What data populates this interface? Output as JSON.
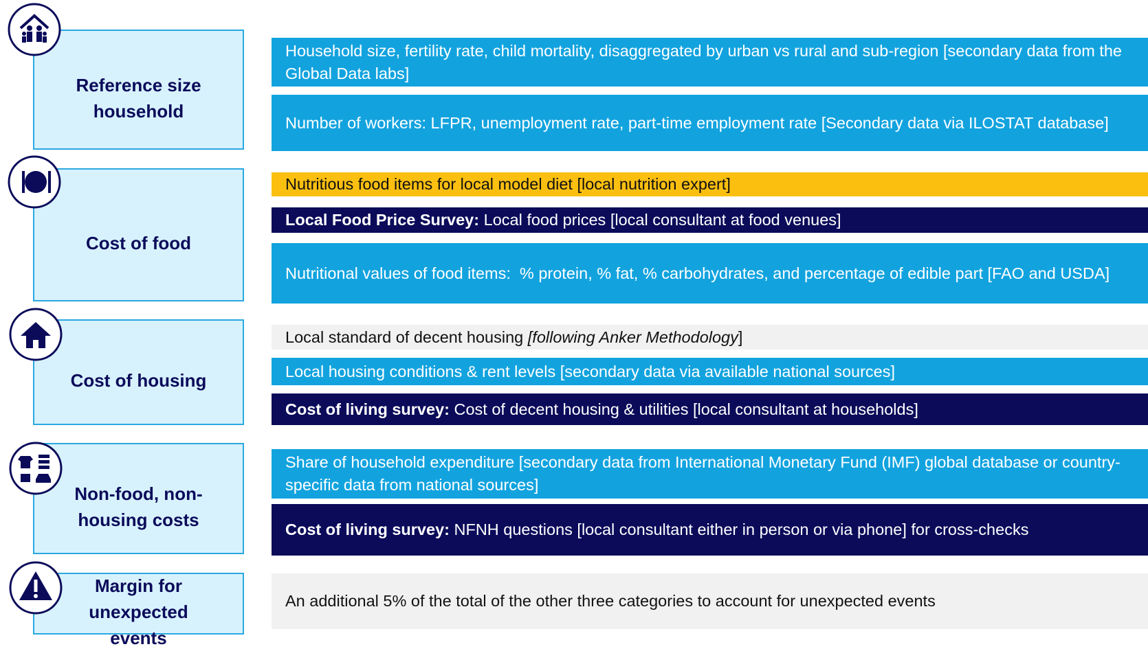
{
  "blocks": [
    {
      "label": "Reference size household",
      "items": [
        {
          "fill": "#12a3df",
          "parts": [
            {
              "text": "Household size, fertility rate, child mortality, disaggregated by urban vs rural and sub-region [secondary data from the Global Data labs]"
            }
          ]
        },
        {
          "fill": "#12a3df",
          "parts": [
            {
              "text": "Number of workers: LFPR, unemployment rate, part-time employment rate [Secondary data via ILOSTAT database]"
            }
          ]
        }
      ]
    },
    {
      "label": "Cost of food",
      "items": [
        {
          "fill": "#fbbf10",
          "parts": [
            {
              "text": "Nutritious food items for local model diet [local nutrition expert]"
            }
          ]
        },
        {
          "fill": "#0b0b5a",
          "parts": [
            {
              "text": "Local Food Price Survey:",
              "style": "bold"
            },
            {
              "text": " Local food prices [local consultant at food venues]"
            }
          ]
        },
        {
          "fill": "#12a3df",
          "parts": [
            {
              "text": "Nutritional values of food items:  % protein, % fat, % carbohydrates, and percentage of edible part [FAO and USDA]"
            }
          ]
        }
      ]
    },
    {
      "label": "Cost of housing",
      "items": [
        {
          "fill": "#f1f1f1",
          "parts": [
            {
              "text": "Local standard of decent housing "
            },
            {
              "text": "[following Anker Methodology",
              "style": "italic"
            },
            {
              "text": "]"
            }
          ]
        },
        {
          "fill": "#12a3df",
          "parts": [
            {
              "text": "Local housing conditions & rent levels [secondary data via available national sources]"
            }
          ]
        },
        {
          "fill": "#0b0b5a",
          "parts": [
            {
              "text": "Cost of living survey:",
              "style": "bold"
            },
            {
              "text": " Cost of decent housing & utilities [local consultant at households]"
            }
          ]
        }
      ]
    },
    {
      "label": "Non-food, non-housing costs",
      "items": [
        {
          "fill": "#12a3df",
          "parts": [
            {
              "text": "Share of household expenditure [secondary data from International Monetary Fund (IMF) global database or country-specific data from national sources]"
            }
          ]
        },
        {
          "fill": "#0b0b5a",
          "parts": [
            {
              "text": "Cost of living survey:",
              "style": "bold"
            },
            {
              "text": " NFNH questions [local consultant either in person or via phone] for cross-checks"
            }
          ]
        }
      ]
    },
    {
      "label": "Margin for unexpected events",
      "items": [
        {
          "fill": "#f1f1f1",
          "parts": [
            {
              "text": "An additional 5% of the total of the other three categories to account for unexpected events"
            }
          ]
        }
      ]
    }
  ]
}
